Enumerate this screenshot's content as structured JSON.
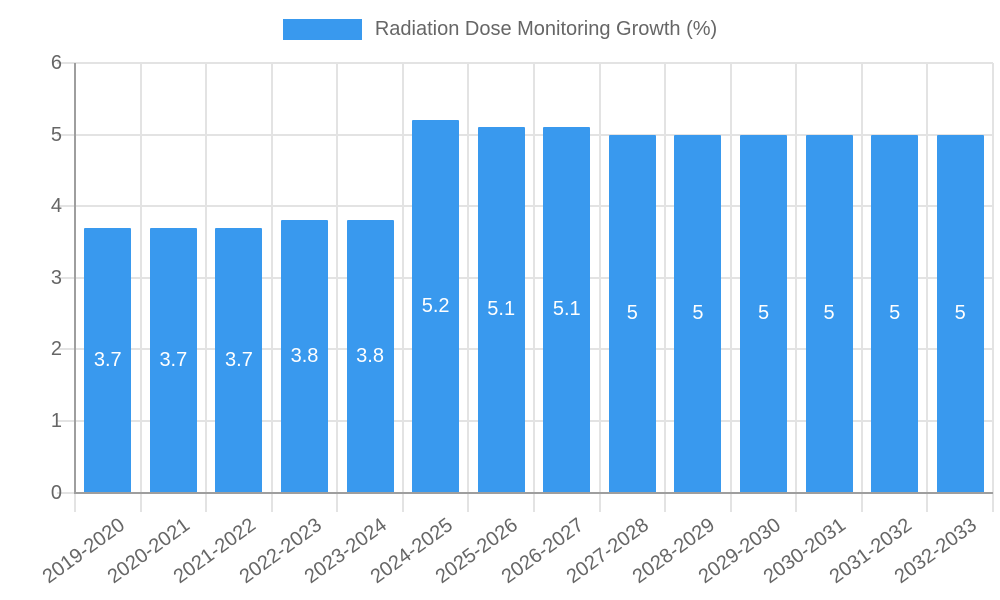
{
  "chart_data": {
    "type": "bar",
    "title": "Radiation Dose Monitoring Growth (%)",
    "categories": [
      "2019-2020",
      "2020-2021",
      "2021-2022",
      "2022-2023",
      "2023-2024",
      "2024-2025",
      "2025-2026",
      "2026-2027",
      "2027-2028",
      "2028-2029",
      "2029-2030",
      "2030-2031",
      "2031-2032",
      "2032-2033"
    ],
    "values": [
      3.7,
      3.7,
      3.7,
      3.8,
      3.8,
      5.2,
      5.1,
      5.1,
      5,
      5,
      5,
      5,
      5,
      5
    ],
    "bar_labels": [
      "3.7",
      "3.7",
      "3.7",
      "3.8",
      "3.8",
      "5.2",
      "5.1",
      "5.1",
      "5",
      "5",
      "5",
      "5",
      "5",
      "5"
    ],
    "xlabel": "",
    "ylabel": "",
    "ylim": [
      0,
      6
    ],
    "y_ticks": [
      "0",
      "1",
      "2",
      "3",
      "4",
      "5",
      "6"
    ],
    "grid": true,
    "legend_position": "top",
    "colors": {
      "bar": "#3999EE",
      "bar_label": "#FFFFFF",
      "axis": "#9E9E9E",
      "grid": "#E3E3E3",
      "tick_text": "#666666",
      "title_text": "#666666",
      "background": "#FFFFFF"
    }
  }
}
